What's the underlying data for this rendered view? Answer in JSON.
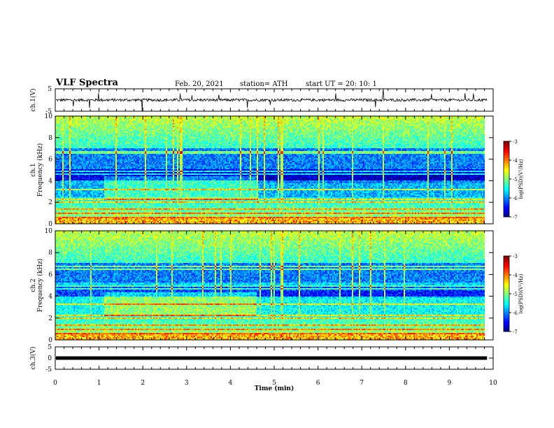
{
  "header": {
    "title": "VLF Spectra",
    "date": "Feb. 20, 2021",
    "station": "station= ATH",
    "start": "start  UT =   20: 10: 1"
  },
  "colors": {
    "spectrogram_low": "#00007f",
    "spectrogram_mid": "#00ffff",
    "spectrogram_high": "#ff0000",
    "trace": "#000000"
  },
  "chart_data": [
    {
      "type": "line",
      "name": "ch1-waveform",
      "ylabel": "ch.1(V)",
      "ylim": [
        -5,
        5
      ],
      "yticks": [
        "5",
        "-5"
      ],
      "xlim": [
        0,
        10
      ],
      "baseline": 0,
      "note_values": "waveform with noise near 0 V and occasional spikes"
    },
    {
      "type": "heatmap",
      "name": "ch1-spectrogram",
      "ylabel": "ch.1\nFrequency (kHz)",
      "ylabel_lines": [
        "ch.1",
        "Frequency (kHz)"
      ],
      "ylim": [
        0,
        10
      ],
      "yticks": [
        "0",
        "2",
        "4",
        "6",
        "8",
        "10"
      ],
      "xlim": [
        0,
        10
      ],
      "data_end_min": 9.82,
      "colorbar": {
        "label": "log(PSD)(V²/Hz)",
        "range": [
          -7,
          -3
        ],
        "ticks": [
          "-3",
          "-4",
          "-5",
          "-6",
          "-7"
        ]
      }
    },
    {
      "type": "heatmap",
      "name": "ch2-spectrogram",
      "ylabel": "ch.2\nFrequency (kHz)",
      "ylabel_lines": [
        "ch.2",
        "Frequency (kHz)"
      ],
      "ylim": [
        0,
        10
      ],
      "yticks": [
        "0",
        "2",
        "4",
        "6",
        "8",
        "10"
      ],
      "xlim": [
        0,
        10
      ],
      "data_end_min": 9.82,
      "colorbar": {
        "label": "log(PSD)(V²/Hz)",
        "range": [
          -7,
          -3
        ],
        "ticks": [
          "-3",
          "-4",
          "-5",
          "-6",
          "-7"
        ]
      }
    },
    {
      "type": "line",
      "name": "ch3-waveform",
      "ylabel": "ch.3(V)",
      "ylim": [
        -5,
        5
      ],
      "yticks": [
        "5",
        "0",
        "-5"
      ],
      "xlim": [
        0,
        10
      ],
      "baseline": 0,
      "xlabel": "Time  (min)",
      "xticks": [
        "0",
        "1",
        "2",
        "3",
        "4",
        "5",
        "6",
        "7",
        "8",
        "9",
        "10"
      ]
    }
  ]
}
